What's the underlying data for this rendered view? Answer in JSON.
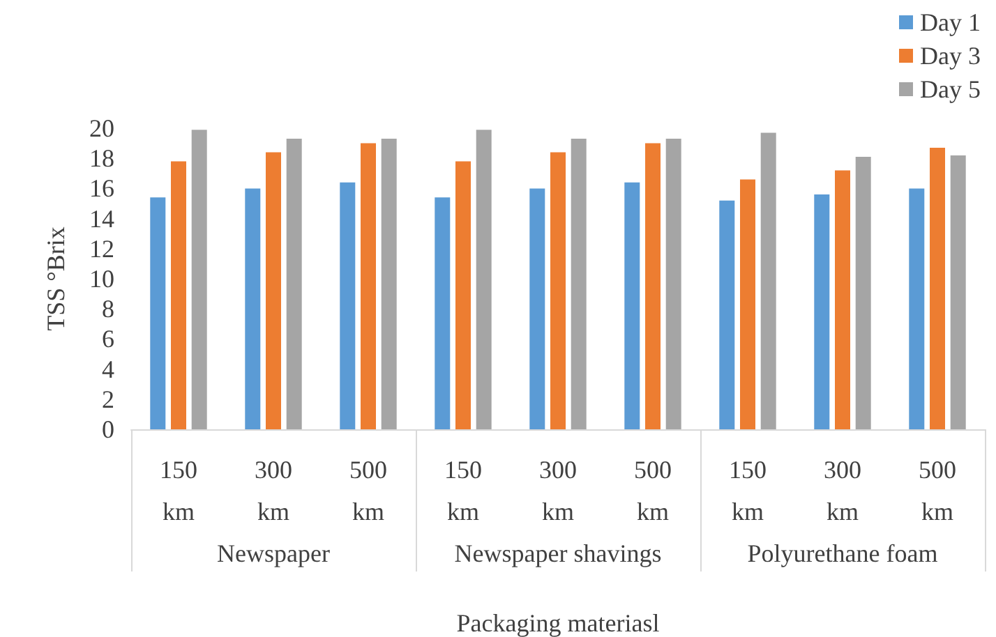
{
  "chart_data": {
    "type": "bar",
    "categories": [
      "150\nkm",
      "300\nkm",
      "500\nkm",
      "150\nkm",
      "300\nkm",
      "500\nkm",
      "150\nkm",
      "300\nkm",
      "500\nkm"
    ],
    "series": [
      {
        "name": "Day 1",
        "color": "#5b9bd5",
        "values": [
          15.4,
          16.0,
          16.4,
          15.4,
          16.0,
          16.4,
          15.2,
          15.6,
          16.0
        ]
      },
      {
        "name": "Day 3",
        "color": "#ed7d31",
        "values": [
          17.8,
          18.4,
          19.0,
          17.8,
          18.4,
          19.0,
          16.6,
          17.2,
          18.7
        ]
      },
      {
        "name": "Day 5",
        "color": "#a5a5a5",
        "values": [
          19.9,
          19.3,
          19.3,
          19.9,
          19.3,
          19.3,
          19.7,
          18.1,
          18.2
        ]
      }
    ],
    "xlabel": "Packaging materiasl",
    "ylabel": "TSS °Brix",
    "annotations": [
      "Newspaper",
      "Newspaper shavings",
      "Polyurethane foam"
    ],
    "ylim": [
      0,
      20
    ],
    "yticks": [
      0,
      2,
      4,
      6,
      8,
      10,
      12,
      14,
      16,
      18,
      20
    ],
    "grid": false,
    "legend": "top right"
  }
}
